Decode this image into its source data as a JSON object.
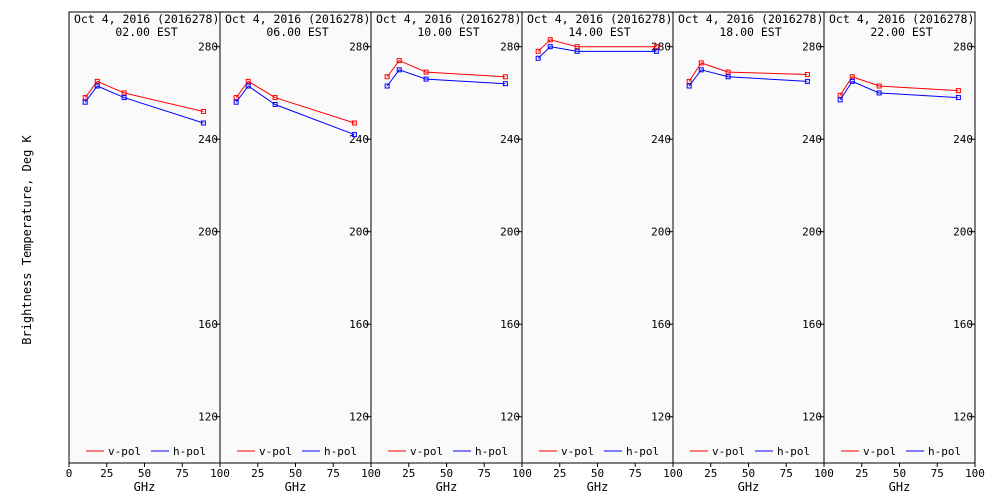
{
  "figure": {
    "ylabel": "Brightness Temperature, Deg K",
    "xlabel": "GHz"
  },
  "legend": {
    "v_label": "v-pol",
    "h_label": "h-pol"
  },
  "colors": {
    "v": "#ff0000",
    "h": "#0000ff",
    "background": "#fafafa",
    "axis": "#000000"
  },
  "chart_data": [
    {
      "type": "line",
      "title": "Oct  4, 2016 (2016278)",
      "subtitle": "02.00 EST",
      "xlabel": "GHz",
      "xlim": [
        0,
        100
      ],
      "ylim": [
        100,
        295
      ],
      "xticks": [
        0,
        25,
        50,
        75,
        100
      ],
      "yticks": [
        120,
        160,
        200,
        240,
        280
      ],
      "x": [
        10.7,
        18.7,
        36.5,
        89.0
      ],
      "series": [
        {
          "name": "v-pol",
          "values": [
            258,
            265,
            260,
            252
          ]
        },
        {
          "name": "h-pol",
          "values": [
            256,
            263,
            258,
            247
          ]
        }
      ]
    },
    {
      "type": "line",
      "title": "Oct  4, 2016 (2016278)",
      "subtitle": "06.00 EST",
      "xlabel": "GHz",
      "xlim": [
        0,
        100
      ],
      "ylim": [
        100,
        295
      ],
      "xticks": [
        0,
        25,
        50,
        75,
        100
      ],
      "yticks": [
        120,
        160,
        200,
        240,
        280
      ],
      "x": [
        10.7,
        18.7,
        36.5,
        89.0
      ],
      "series": [
        {
          "name": "v-pol",
          "values": [
            258,
            265,
            258,
            247
          ]
        },
        {
          "name": "h-pol",
          "values": [
            256,
            263,
            255,
            242
          ]
        }
      ]
    },
    {
      "type": "line",
      "title": "Oct  4, 2016 (2016278)",
      "subtitle": "10.00 EST",
      "xlabel": "GHz",
      "xlim": [
        0,
        100
      ],
      "ylim": [
        100,
        295
      ],
      "xticks": [
        0,
        25,
        50,
        75,
        100
      ],
      "yticks": [
        120,
        160,
        200,
        240,
        280
      ],
      "x": [
        10.7,
        18.7,
        36.5,
        89.0
      ],
      "series": [
        {
          "name": "v-pol",
          "values": [
            267,
            274,
            269,
            267
          ]
        },
        {
          "name": "h-pol",
          "values": [
            263,
            270,
            266,
            264
          ]
        }
      ]
    },
    {
      "type": "line",
      "title": "Oct  4, 2016 (2016278)",
      "subtitle": "14.00 EST",
      "xlabel": "GHz",
      "xlim": [
        0,
        100
      ],
      "ylim": [
        100,
        295
      ],
      "xticks": [
        0,
        25,
        50,
        75,
        100
      ],
      "yticks": [
        120,
        160,
        200,
        240,
        280
      ],
      "x": [
        10.7,
        18.7,
        36.5,
        89.0
      ],
      "series": [
        {
          "name": "v-pol",
          "values": [
            278,
            283,
            280,
            280
          ]
        },
        {
          "name": "h-pol",
          "values": [
            275,
            280,
            278,
            278
          ]
        }
      ]
    },
    {
      "type": "line",
      "title": "Oct  4, 2016 (2016278)",
      "subtitle": "18.00 EST",
      "xlabel": "GHz",
      "xlim": [
        0,
        100
      ],
      "ylim": [
        100,
        295
      ],
      "xticks": [
        0,
        25,
        50,
        75,
        100
      ],
      "yticks": [
        120,
        160,
        200,
        240,
        280
      ],
      "x": [
        10.7,
        18.7,
        36.5,
        89.0
      ],
      "series": [
        {
          "name": "v-pol",
          "values": [
            265,
            273,
            269,
            268
          ]
        },
        {
          "name": "h-pol",
          "values": [
            263,
            270,
            267,
            265
          ]
        }
      ]
    },
    {
      "type": "line",
      "title": "Oct  4, 2016 (2016278)",
      "subtitle": "22.00 EST",
      "xlabel": "GHz",
      "xlim": [
        0,
        100
      ],
      "ylim": [
        100,
        295
      ],
      "xticks": [
        0,
        25,
        50,
        75,
        100
      ],
      "yticks": [
        120,
        160,
        200,
        240,
        280
      ],
      "x": [
        10.7,
        18.7,
        36.5,
        89.0
      ],
      "series": [
        {
          "name": "v-pol",
          "values": [
            259,
            267,
            263,
            261
          ]
        },
        {
          "name": "h-pol",
          "values": [
            257,
            265,
            260,
            258
          ]
        }
      ]
    }
  ]
}
